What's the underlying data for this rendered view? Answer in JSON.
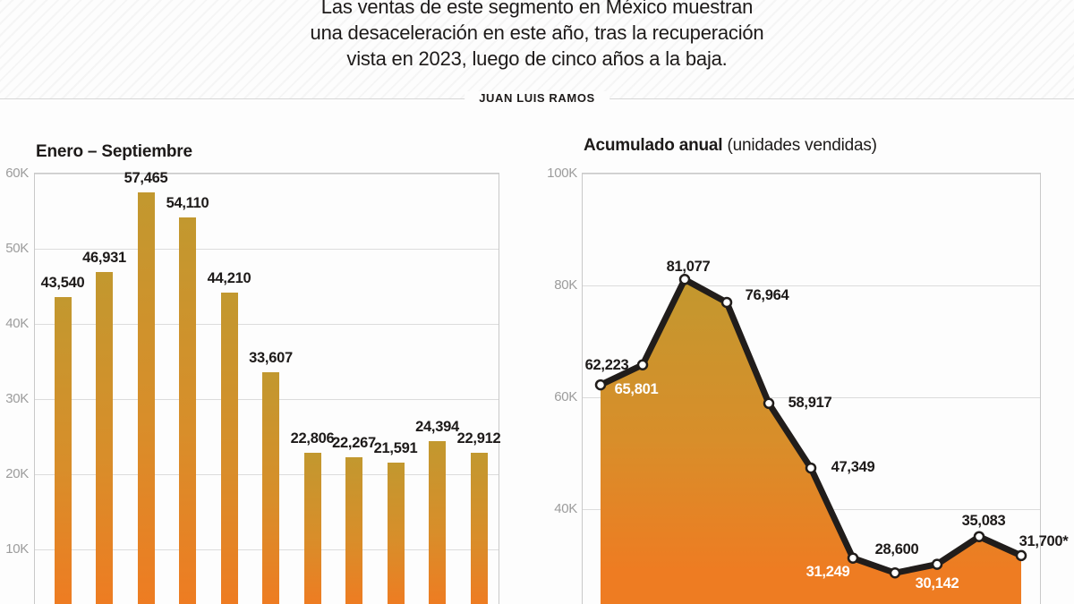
{
  "header": {
    "intro_lines": [
      "Las ventas de este segmento en México muestran",
      "una desaceleración en este año, tras la recuperación",
      "vista en 2023, luego de cinco años a la baja."
    ],
    "byline": "JUAN LUIS RAMOS"
  },
  "colors": {
    "gold_top": "#c2982f",
    "gradient_mid": "#d88e2a",
    "orange_bottom": "#ee7c22",
    "trend_line": "#211d1b",
    "marker_fill": "#ffffff",
    "grid": "#dcdcdc",
    "axis_text": "#9c9c9c",
    "label_dark": "#1d1a19",
    "label_light": "#ffffff"
  },
  "chart_data": [
    {
      "type": "bar",
      "title": "Enero – Septiembre",
      "values": [
        43540,
        46931,
        57465,
        54110,
        44210,
        33607,
        22806,
        22267,
        21591,
        24394,
        22912
      ],
      "labels": [
        "43,540",
        "46,931",
        "57,465",
        "54,110",
        "44,210",
        "33,607",
        "22,806",
        "22,267",
        "21,591",
        "24,394",
        "22,912"
      ],
      "ylim": [
        0,
        60000
      ],
      "yticks": [
        {
          "label": "60K",
          "value": 60000
        },
        {
          "label": "50K",
          "value": 50000
        },
        {
          "label": "40K",
          "value": 40000
        },
        {
          "label": "30K",
          "value": 30000
        },
        {
          "label": "20K",
          "value": 20000
        },
        {
          "label": "10K",
          "value": 10000
        }
      ],
      "grid": true,
      "legend": "none"
    },
    {
      "type": "area",
      "title": "Acumulado anual",
      "title_suffix": "(unidades vendidas)",
      "values": [
        62223,
        65801,
        81077,
        76964,
        58917,
        47349,
        31249,
        28600,
        30142,
        35083,
        31700
      ],
      "labels": [
        "62,223",
        "65,801",
        "81,077",
        "76,964",
        "58,917",
        "47,349",
        "31,249",
        "28,600",
        "30,142",
        "35,083",
        "31,700*"
      ],
      "label_styles": [
        "dark",
        "light",
        "dark",
        "dark",
        "dark",
        "dark",
        "light",
        "dark",
        "light",
        "dark",
        "dark"
      ],
      "ylim": [
        0,
        100000
      ],
      "yticks": [
        {
          "label": "100K",
          "value": 100000
        },
        {
          "label": "80K",
          "value": 80000
        },
        {
          "label": "60K",
          "value": 60000
        },
        {
          "label": "40K",
          "value": 40000
        }
      ],
      "grid": true,
      "legend": "none"
    }
  ]
}
